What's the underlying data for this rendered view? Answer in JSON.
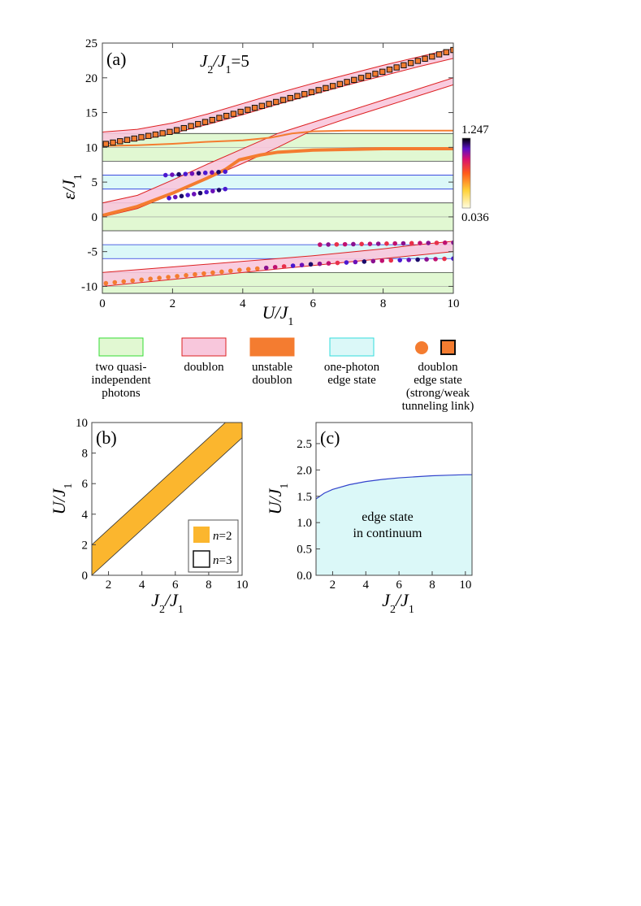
{
  "colors": {
    "green_fill": "#e1f8d2",
    "green_edge": "#33dd33",
    "pink_fill": "#f8c7dc",
    "pink_edge": "#dd2222",
    "orange": "#f47c30",
    "cyan_fill": "#dbf8f8",
    "cyan_edge": "#33dddd",
    "blue_line": "#2233dd",
    "gold": "#fbb62e",
    "edge_blue": "#3344cc"
  },
  "panel_a": {
    "label": "(a)",
    "title_main": "J",
    "title_sub2": "2",
    "title_slash": "/J",
    "title_sub1": "1",
    "title_eq": "=5",
    "ylabel_main": "ε/J",
    "ylabel_sub": "1",
    "xlabel_main": "U/J",
    "xlabel_sub": "1",
    "colorbar": {
      "max_label": "1.247",
      "min_label": "0.036"
    },
    "chart_data": {
      "type": "line",
      "title": "J2/J1=5",
      "xlabel": "U/J1",
      "ylabel": "ε/J1",
      "xlim": [
        0,
        10
      ],
      "ylim": [
        -11,
        25
      ],
      "xticks": [
        0,
        2,
        4,
        6,
        8,
        10
      ],
      "yticks": [
        -10,
        -5,
        0,
        5,
        10,
        15,
        20,
        25
      ],
      "ytick_labels": [
        "-10",
        "-5",
        "0",
        "5",
        "10",
        "15",
        "20",
        "25"
      ],
      "green_bands": [
        [
          8,
          12
        ],
        [
          -2,
          2
        ],
        [
          -12,
          -8
        ]
      ],
      "cyan_bands": [
        [
          4,
          6
        ],
        [
          -6,
          -4
        ]
      ],
      "pink_bands": [
        {
          "x": [
            0,
            1,
            2,
            3,
            4,
            5,
            6,
            7,
            8,
            9,
            10
          ],
          "upper": [
            12.2,
            12.6,
            13.5,
            14.8,
            16.3,
            17.8,
            19.2,
            20.5,
            21.8,
            23.0,
            24.2
          ],
          "lower": [
            10.5,
            11.0,
            12.0,
            13.3,
            14.7,
            16.2,
            17.6,
            19.0,
            20.3,
            21.6,
            22.8
          ]
        },
        {
          "x": [
            0,
            1,
            2,
            3,
            4,
            5,
            6,
            7,
            8,
            9,
            10
          ],
          "upper": [
            2.0,
            3.1,
            5.3,
            7.6,
            9.8,
            12.0,
            13.6,
            15.2,
            16.8,
            18.4,
            20.0
          ],
          "lower": [
            0.0,
            1.2,
            3.3,
            5.5,
            7.7,
            10.0,
            12.5,
            14.2,
            15.8,
            17.4,
            19.0
          ]
        },
        {
          "x": [
            0,
            1,
            2,
            3,
            4,
            5,
            6,
            7,
            8,
            9,
            10
          ],
          "upper": [
            -8.0,
            -7.6,
            -7.2,
            -6.8,
            -6.4,
            -6.0,
            -5.6,
            -5.1,
            -4.6,
            -4.0,
            -3.5
          ],
          "lower": [
            -10.0,
            -9.5,
            -9.0,
            -8.5,
            -8.0,
            -7.5,
            -7.0,
            -6.5,
            -6.0,
            -5.5,
            -5.0
          ]
        }
      ],
      "orange_lines": [
        {
          "x": [
            0,
            1,
            2,
            3,
            4,
            4.8,
            5.4,
            6,
            7,
            8,
            9,
            10
          ],
          "y": [
            10.2,
            10.3,
            10.5,
            10.8,
            11.0,
            11.4,
            12.0,
            12.3,
            12.4,
            12.4,
            12.4,
            12.4
          ]
        },
        {
          "x": [
            0,
            1,
            2,
            3,
            3.5,
            3.9,
            4.5,
            5,
            6,
            7,
            8,
            10
          ],
          "y": [
            0.2,
            1.5,
            3.4,
            5.6,
            6.8,
            8.2,
            8.9,
            9.3,
            9.6,
            9.7,
            9.8,
            9.8
          ]
        }
      ],
      "series": [
        {
          "name": "doublon edge state (strong link)",
          "marker": "square",
          "color_value": "high",
          "x_start": 0.1,
          "x_end": 10,
          "count": 50,
          "y_at_x": {
            "0": 10.4,
            "2": 12.3,
            "4": 15.2,
            "6": 18.0,
            "8": 20.9,
            "10": 24.0
          }
        },
        {
          "name": "doublon edge state (weak link) lower branch",
          "marker": "circle",
          "x_start": 0.1,
          "x_end": 10,
          "count": 40,
          "y_at_x": {
            "0": -9.6,
            "2": -8.6,
            "4": -7.6,
            "6": -6.8,
            "8": -6.3,
            "10": -6.0
          }
        },
        {
          "name": "upper doublon edge branch (right)",
          "marker": "circle",
          "x_start": 6.2,
          "x_end": 10,
          "count": 17,
          "y_at_x": {
            "6.2": -4.0,
            "10": -3.7
          }
        },
        {
          "name": "edge state branch at ~6",
          "marker": "circle",
          "x_start": 1.8,
          "x_end": 3.5,
          "count": 10,
          "y_at_x": {
            "1.8": 6.0,
            "3.5": 6.5
          }
        },
        {
          "name": "edge state branch at ~4",
          "marker": "circle",
          "x_start": 1.9,
          "x_end": 3.5,
          "count": 10,
          "y_at_x": {
            "1.9": 2.7,
            "3.5": 4.0
          }
        }
      ]
    }
  },
  "legend": {
    "items": [
      {
        "label_lines": [
          "two quasi-",
          "independent",
          "photons"
        ]
      },
      {
        "label_lines": [
          "doublon"
        ]
      },
      {
        "label_lines": [
          "unstable",
          "doublon"
        ]
      },
      {
        "label_lines": [
          "one-photon",
          "edge state"
        ]
      },
      {
        "label_lines": [
          "doublon",
          "edge state",
          "(strong/weak",
          "tunneling link)"
        ]
      }
    ]
  },
  "panel_b": {
    "label": "(b)",
    "ylabel_main": "U/J",
    "ylabel_sub": "1",
    "xlabel_main": "J",
    "xlabel_sub2": "2",
    "xlabel_mid": "/J",
    "xlabel_sub1": "1",
    "legend_n2_pre": "n",
    "legend_n2_post": "=2",
    "legend_n3_pre": "n",
    "legend_n3_post": "=3",
    "chart_data": {
      "type": "area",
      "xlabel": "J2/J1",
      "ylabel": "U/J1",
      "xlim": [
        1,
        10
      ],
      "ylim": [
        0,
        10
      ],
      "xticks": [
        2,
        4,
        6,
        8,
        10
      ],
      "yticks": [
        0,
        2,
        4,
        6,
        8,
        10
      ],
      "band_n2": {
        "lower": {
          "x": [
            1,
            10
          ],
          "y": [
            0,
            9
          ]
        },
        "upper": {
          "x": [
            1,
            10
          ],
          "y": [
            2,
            11
          ]
        }
      },
      "legend": [
        "n=2",
        "n=3"
      ]
    }
  },
  "panel_c": {
    "label": "(c)",
    "ylabel_main": "U/J",
    "ylabel_sub": "1",
    "xlabel_main": "J",
    "xlabel_sub2": "2",
    "xlabel_mid": "/J",
    "xlabel_sub1": "1",
    "region_line1": "edge state",
    "region_line2": "in continuum",
    "chart_data": {
      "type": "area",
      "xlabel": "J2/J1",
      "ylabel": "U/J1",
      "xlim": [
        1,
        10.4
      ],
      "ylim": [
        0,
        2.9
      ],
      "xticks": [
        2,
        4,
        6,
        8,
        10
      ],
      "yticks": [
        0.0,
        0.5,
        1.0,
        1.5,
        2.0,
        2.5
      ],
      "ytick_labels": [
        "0.0",
        "0.5",
        "1.0",
        "1.5",
        "2.0",
        "2.5"
      ],
      "boundary": {
        "x": [
          1,
          1.5,
          2,
          3,
          4,
          5,
          6,
          7,
          8,
          9,
          10,
          10.4
        ],
        "y": [
          1.45,
          1.56,
          1.63,
          1.72,
          1.78,
          1.82,
          1.85,
          1.87,
          1.89,
          1.9,
          1.91,
          1.91
        ]
      }
    }
  }
}
